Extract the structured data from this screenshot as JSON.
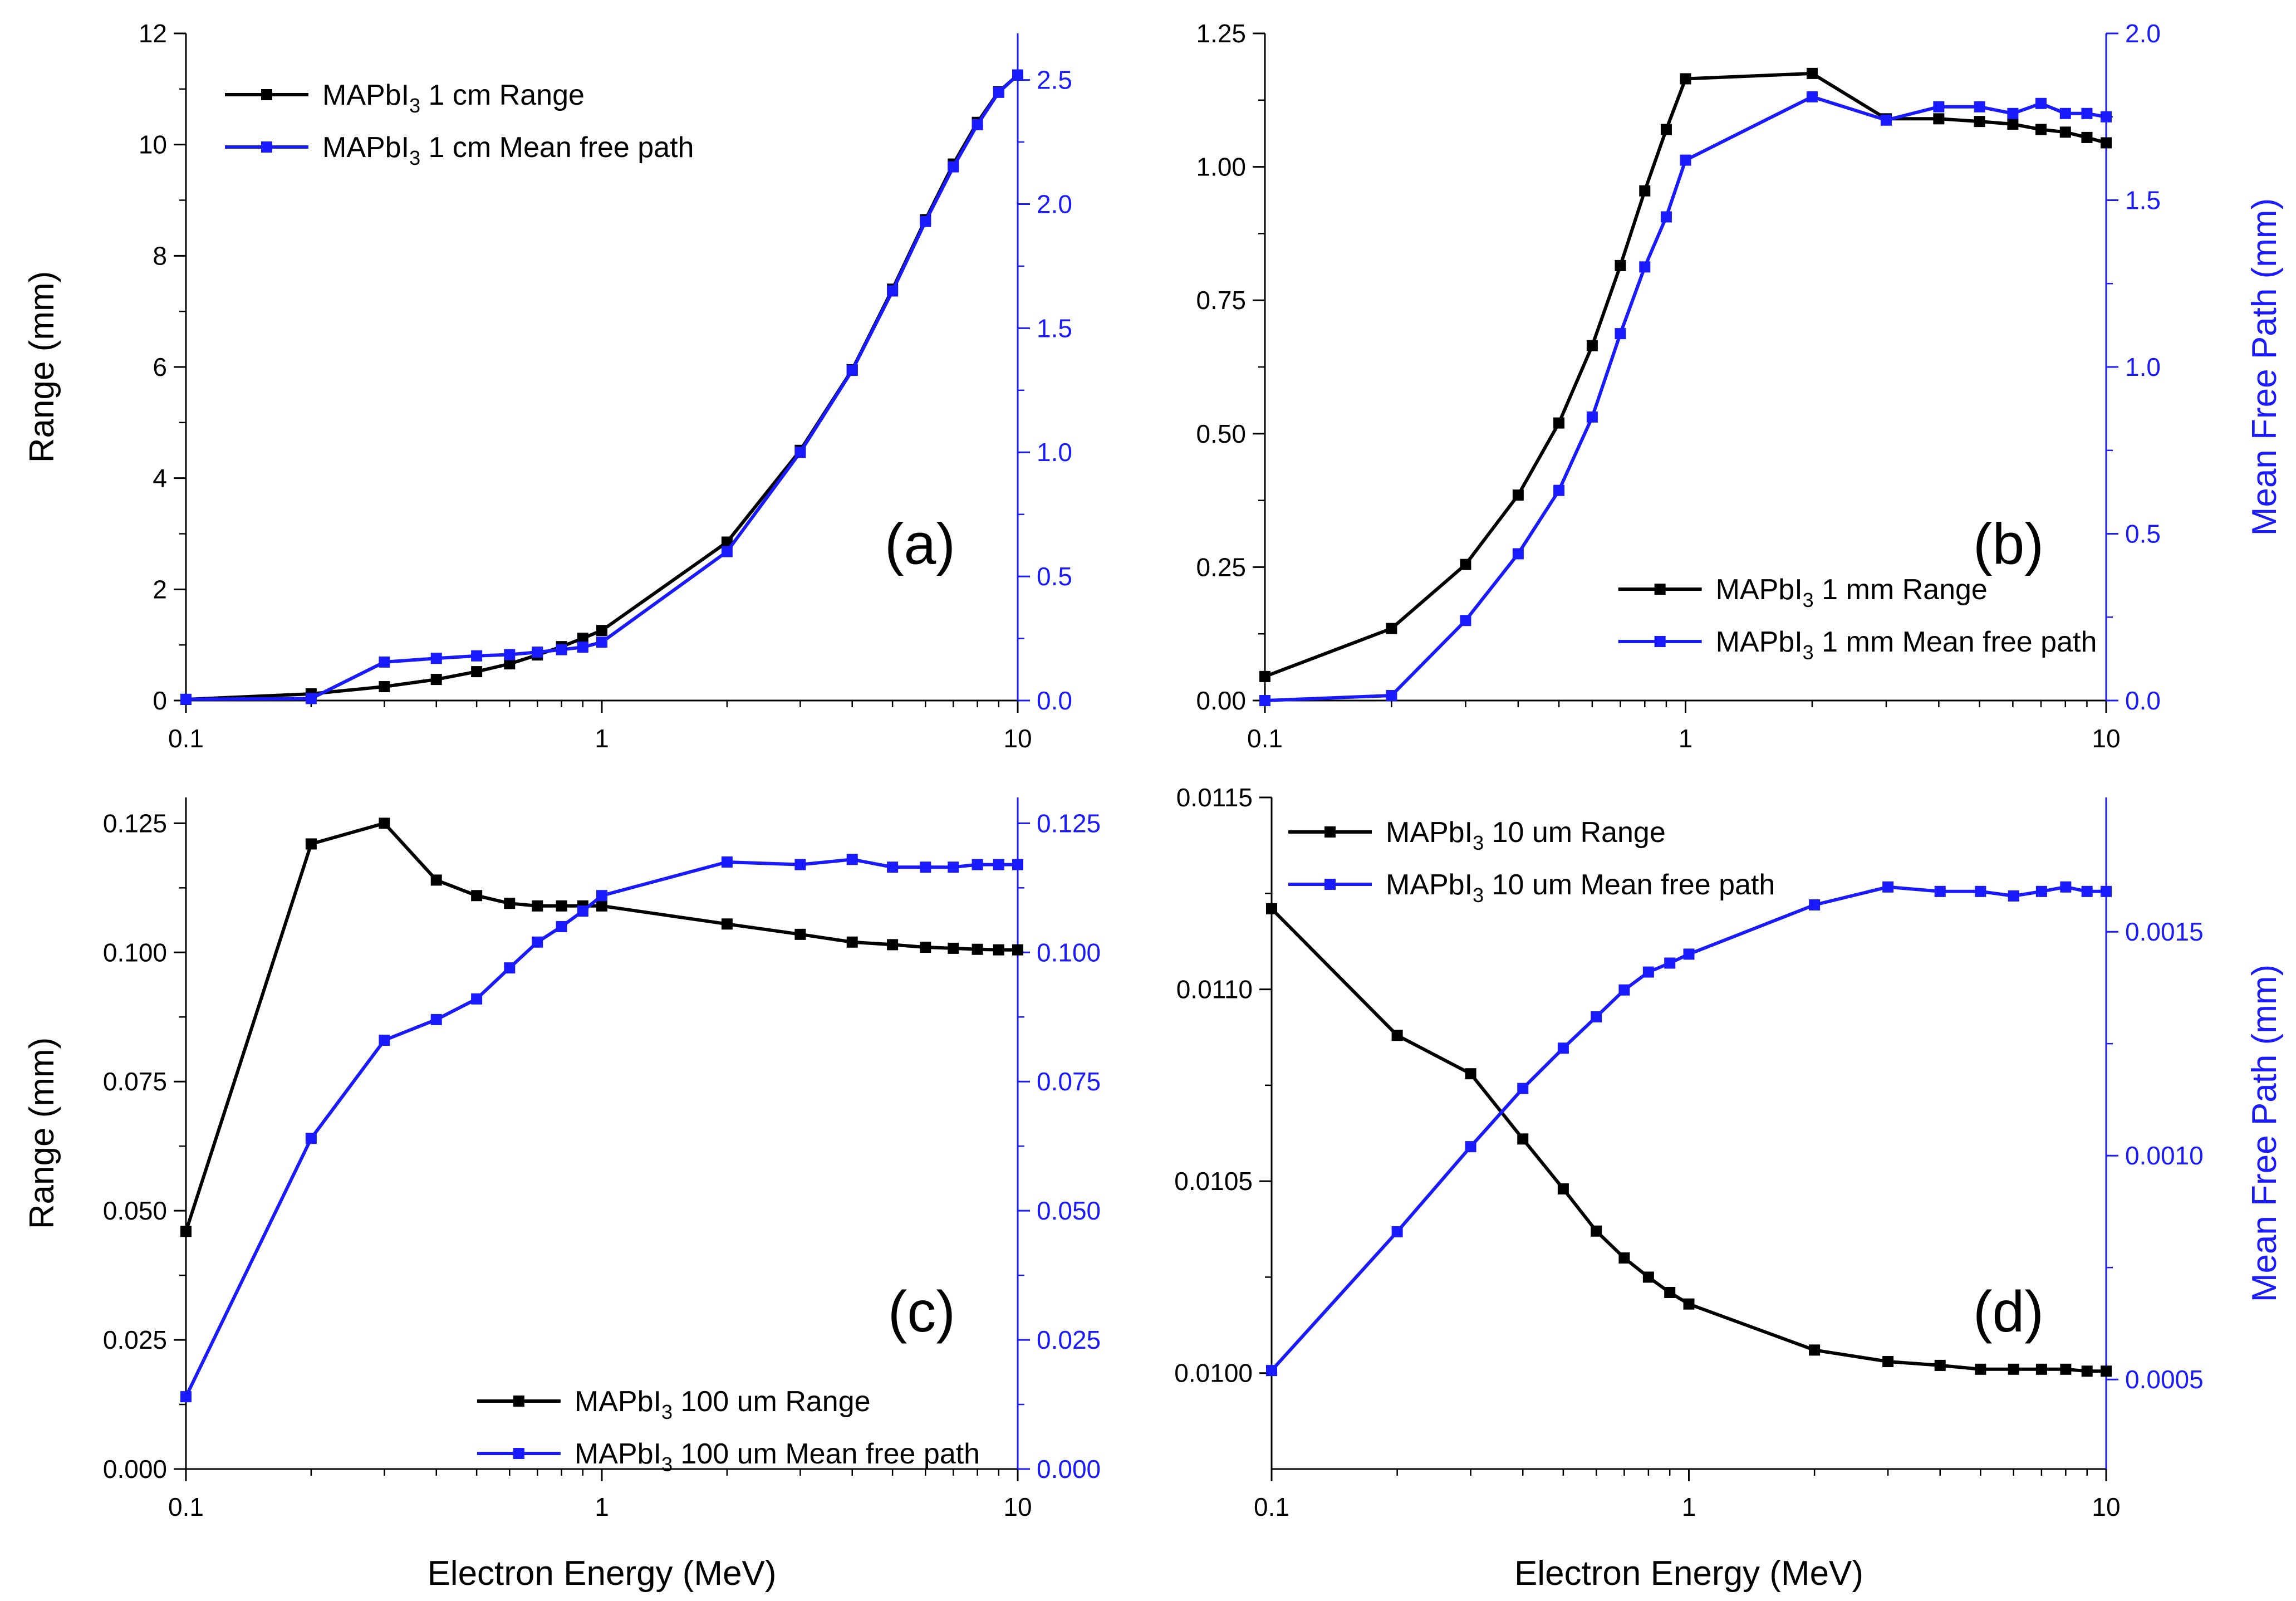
{
  "figure_text": {
    "x_axis_label": "Electron Energy (MeV)",
    "left_axis_label": "Range (mm)",
    "right_axis_label": "Mean Free Path (mm)"
  },
  "colors": {
    "range": "#000000",
    "mfp": "#1a1aff",
    "axis_left": "#000000",
    "axis_right": "#1a1aff"
  },
  "chart_data": [
    {
      "type": "line",
      "panel_label": "(a)",
      "xscale": "log",
      "xlim": [
        0.1,
        10
      ],
      "x_ticks": [
        0.1,
        1,
        10
      ],
      "x_tick_labels": [
        "0.1",
        "1",
        "10"
      ],
      "show_xlabel": false,
      "ylabel": "Range (mm)",
      "ylim": [
        0,
        12
      ],
      "y_ticks": [
        0,
        2,
        4,
        6,
        8,
        10,
        12
      ],
      "y_tick_labels": [
        "0",
        "2",
        "4",
        "6",
        "8",
        "10",
        "12"
      ],
      "y2label": "",
      "y2lim": [
        0,
        2.6875
      ],
      "y2_ticks": [
        0,
        0.5,
        1.0,
        1.5,
        2.0,
        2.5
      ],
      "y2_tick_labels": [
        "0.0",
        "0.5",
        "1.0",
        "1.5",
        "2.0",
        "2.5"
      ],
      "legend_position": "top-left",
      "series": [
        {
          "name": "MAPbI3 1 cm Range",
          "label_prefix": "MAPbI",
          "label_sub": "3",
          "label_suffix": " 1 cm Range",
          "axis": "left",
          "x": [
            0.1,
            0.2,
            0.3,
            0.4,
            0.5,
            0.6,
            0.7,
            0.8,
            0.9,
            1,
            2,
            3,
            4,
            5,
            6,
            7,
            8,
            9,
            10
          ],
          "values": [
            0.02,
            0.12,
            0.25,
            0.38,
            0.52,
            0.66,
            0.82,
            0.97,
            1.12,
            1.26,
            2.85,
            4.5,
            5.95,
            7.4,
            8.65,
            9.65,
            10.4,
            10.95,
            11.25
          ]
        },
        {
          "name": "MAPbI3 1 cm Mean free path",
          "label_prefix": "MAPbI",
          "label_sub": "3",
          "label_suffix": " 1 cm Mean free path",
          "axis": "right",
          "x": [
            0.1,
            0.2,
            0.3,
            0.4,
            0.5,
            0.6,
            0.7,
            0.8,
            0.9,
            1,
            2,
            3,
            4,
            5,
            6,
            7,
            8,
            9,
            10
          ],
          "values": [
            0.005,
            0.008,
            0.155,
            0.17,
            0.18,
            0.185,
            0.195,
            0.205,
            0.215,
            0.235,
            0.6,
            1.0,
            1.33,
            1.65,
            1.93,
            2.15,
            2.32,
            2.45,
            2.52
          ]
        }
      ]
    },
    {
      "type": "line",
      "panel_label": "(b)",
      "xscale": "log",
      "xlim": [
        0.1,
        10
      ],
      "x_ticks": [
        0.1,
        1,
        10
      ],
      "x_tick_labels": [
        "0.1",
        "1",
        "10"
      ],
      "show_xlabel": false,
      "ylabel": "",
      "ylim": [
        0,
        1.25
      ],
      "y_ticks": [
        0,
        0.25,
        0.5,
        0.75,
        1.0,
        1.25
      ],
      "y_tick_labels": [
        "0.00",
        "0.25",
        "0.50",
        "0.75",
        "1.00",
        "1.25"
      ],
      "y2label": "Mean Free Path (mm)",
      "y2lim": [
        0,
        2.0
      ],
      "y2_ticks": [
        0,
        0.5,
        1.0,
        1.5,
        2.0
      ],
      "y2_tick_labels": [
        "0.0",
        "0.5",
        "1.0",
        "1.5",
        "2.0"
      ],
      "legend_position": "bottom-right",
      "series": [
        {
          "name": "MAPbI3 1 mm Range",
          "label_prefix": "MAPbI",
          "label_sub": "3",
          "label_suffix": " 1 mm Range",
          "axis": "left",
          "x": [
            0.1,
            0.2,
            0.3,
            0.4,
            0.5,
            0.6,
            0.7,
            0.8,
            0.9,
            1,
            2,
            3,
            4,
            5,
            6,
            7,
            8,
            9,
            10
          ],
          "values": [
            0.045,
            0.135,
            0.255,
            0.385,
            0.52,
            0.665,
            0.815,
            0.955,
            1.07,
            1.165,
            1.175,
            1.09,
            1.09,
            1.085,
            1.08,
            1.07,
            1.065,
            1.055,
            1.045
          ]
        },
        {
          "name": "MAPbI3 1 mm Mean free path",
          "label_prefix": "MAPbI",
          "label_sub": "3",
          "label_suffix": " 1 mm Mean free path",
          "axis": "right",
          "x": [
            0.1,
            0.2,
            0.3,
            0.4,
            0.5,
            0.6,
            0.7,
            0.8,
            0.9,
            1,
            2,
            3,
            4,
            5,
            6,
            7,
            8,
            9,
            10
          ],
          "values": [
            0.0,
            0.015,
            0.24,
            0.44,
            0.63,
            0.85,
            1.1,
            1.3,
            1.45,
            1.62,
            1.81,
            1.74,
            1.78,
            1.78,
            1.76,
            1.79,
            1.76,
            1.76,
            1.75
          ]
        }
      ]
    },
    {
      "type": "line",
      "panel_label": "(c)",
      "xscale": "log",
      "xlim": [
        0.1,
        10
      ],
      "x_ticks": [
        0.1,
        1,
        10
      ],
      "x_tick_labels": [
        "0.1",
        "1",
        "10"
      ],
      "show_xlabel": true,
      "ylabel": "Range (mm)",
      "ylim": [
        0,
        0.13
      ],
      "y_ticks": [
        0,
        0.025,
        0.05,
        0.075,
        0.1,
        0.125
      ],
      "y_tick_labels": [
        "0.000",
        "0.025",
        "0.050",
        "0.075",
        "0.100",
        "0.125"
      ],
      "y2label": "",
      "y2lim": [
        0,
        0.13
      ],
      "y2_ticks": [
        0,
        0.025,
        0.05,
        0.075,
        0.1,
        0.125
      ],
      "y2_tick_labels": [
        "0.000",
        "0.025",
        "0.050",
        "0.075",
        "0.100",
        "0.125"
      ],
      "legend_position": "bottom-right",
      "series": [
        {
          "name": "MAPbI3 100 um Range",
          "label_prefix": "MAPbI",
          "label_sub": "3",
          "label_suffix": " 100 um Range",
          "axis": "left",
          "x": [
            0.1,
            0.2,
            0.3,
            0.4,
            0.5,
            0.6,
            0.7,
            0.8,
            0.9,
            1,
            2,
            3,
            4,
            5,
            6,
            7,
            8,
            9,
            10
          ],
          "values": [
            0.046,
            0.121,
            0.125,
            0.114,
            0.111,
            0.1095,
            0.109,
            0.109,
            0.109,
            0.109,
            0.1055,
            0.1035,
            0.102,
            0.1015,
            0.101,
            0.1008,
            0.1006,
            0.1005,
            0.1005
          ]
        },
        {
          "name": "MAPbI3 100 um Mean free path",
          "label_prefix": "MAPbI",
          "label_sub": "3",
          "label_suffix": " 100 um Mean free path",
          "axis": "right",
          "x": [
            0.1,
            0.2,
            0.3,
            0.4,
            0.5,
            0.6,
            0.7,
            0.8,
            0.9,
            1,
            2,
            3,
            4,
            5,
            6,
            7,
            8,
            9,
            10
          ],
          "values": [
            0.014,
            0.064,
            0.083,
            0.087,
            0.091,
            0.097,
            0.102,
            0.105,
            0.108,
            0.111,
            0.1175,
            0.117,
            0.118,
            0.1165,
            0.1165,
            0.1165,
            0.117,
            0.117,
            0.117
          ]
        }
      ]
    },
    {
      "type": "line",
      "panel_label": "(d)",
      "xscale": "log",
      "xlim": [
        0.1,
        10
      ],
      "x_ticks": [
        0.1,
        1,
        10
      ],
      "x_tick_labels": [
        "0.1",
        "1",
        "10"
      ],
      "show_xlabel": true,
      "ylabel": "",
      "ylim": [
        0.00975,
        0.0115
      ],
      "y_ticks": [
        0.01,
        0.0105,
        0.011,
        0.0115
      ],
      "y_tick_labels": [
        "0.0100",
        "0.0105",
        "0.0110",
        "0.0115"
      ],
      "y2label": "Mean Free Path (mm)",
      "y2lim": [
        0.0003,
        0.0018
      ],
      "y2_ticks": [
        0.0005,
        0.001,
        0.0015
      ],
      "y2_tick_labels": [
        "0.0005",
        "0.0010",
        "0.0015"
      ],
      "legend_position": "top-left",
      "series": [
        {
          "name": "MAPbI3 10 um Range",
          "label_prefix": "MAPbI",
          "label_sub": "3",
          "label_suffix": " 10 um Range",
          "axis": "left",
          "x": [
            0.1,
            0.2,
            0.3,
            0.4,
            0.5,
            0.6,
            0.7,
            0.8,
            0.9,
            1,
            2,
            3,
            4,
            5,
            6,
            7,
            8,
            9,
            10
          ],
          "values": [
            0.01121,
            0.01088,
            0.01078,
            0.01061,
            0.01048,
            0.01037,
            0.0103,
            0.01025,
            0.01021,
            0.01018,
            0.01006,
            0.01003,
            0.01002,
            0.01001,
            0.01001,
            0.01001,
            0.01001,
            0.010005,
            0.010005
          ]
        },
        {
          "name": "MAPbI3 10 um Mean free path",
          "label_prefix": "MAPbI",
          "label_sub": "3",
          "label_suffix": " 10 um Mean free path",
          "axis": "right",
          "x": [
            0.1,
            0.2,
            0.3,
            0.4,
            0.5,
            0.6,
            0.7,
            0.8,
            0.9,
            1,
            2,
            3,
            4,
            5,
            6,
            7,
            8,
            9,
            10
          ],
          "values": [
            0.00052,
            0.00083,
            0.00102,
            0.00115,
            0.00124,
            0.00131,
            0.00137,
            0.00141,
            0.00143,
            0.00145,
            0.00156,
            0.0016,
            0.00159,
            0.00159,
            0.00158,
            0.00159,
            0.0016,
            0.00159,
            0.00159
          ]
        }
      ]
    }
  ]
}
